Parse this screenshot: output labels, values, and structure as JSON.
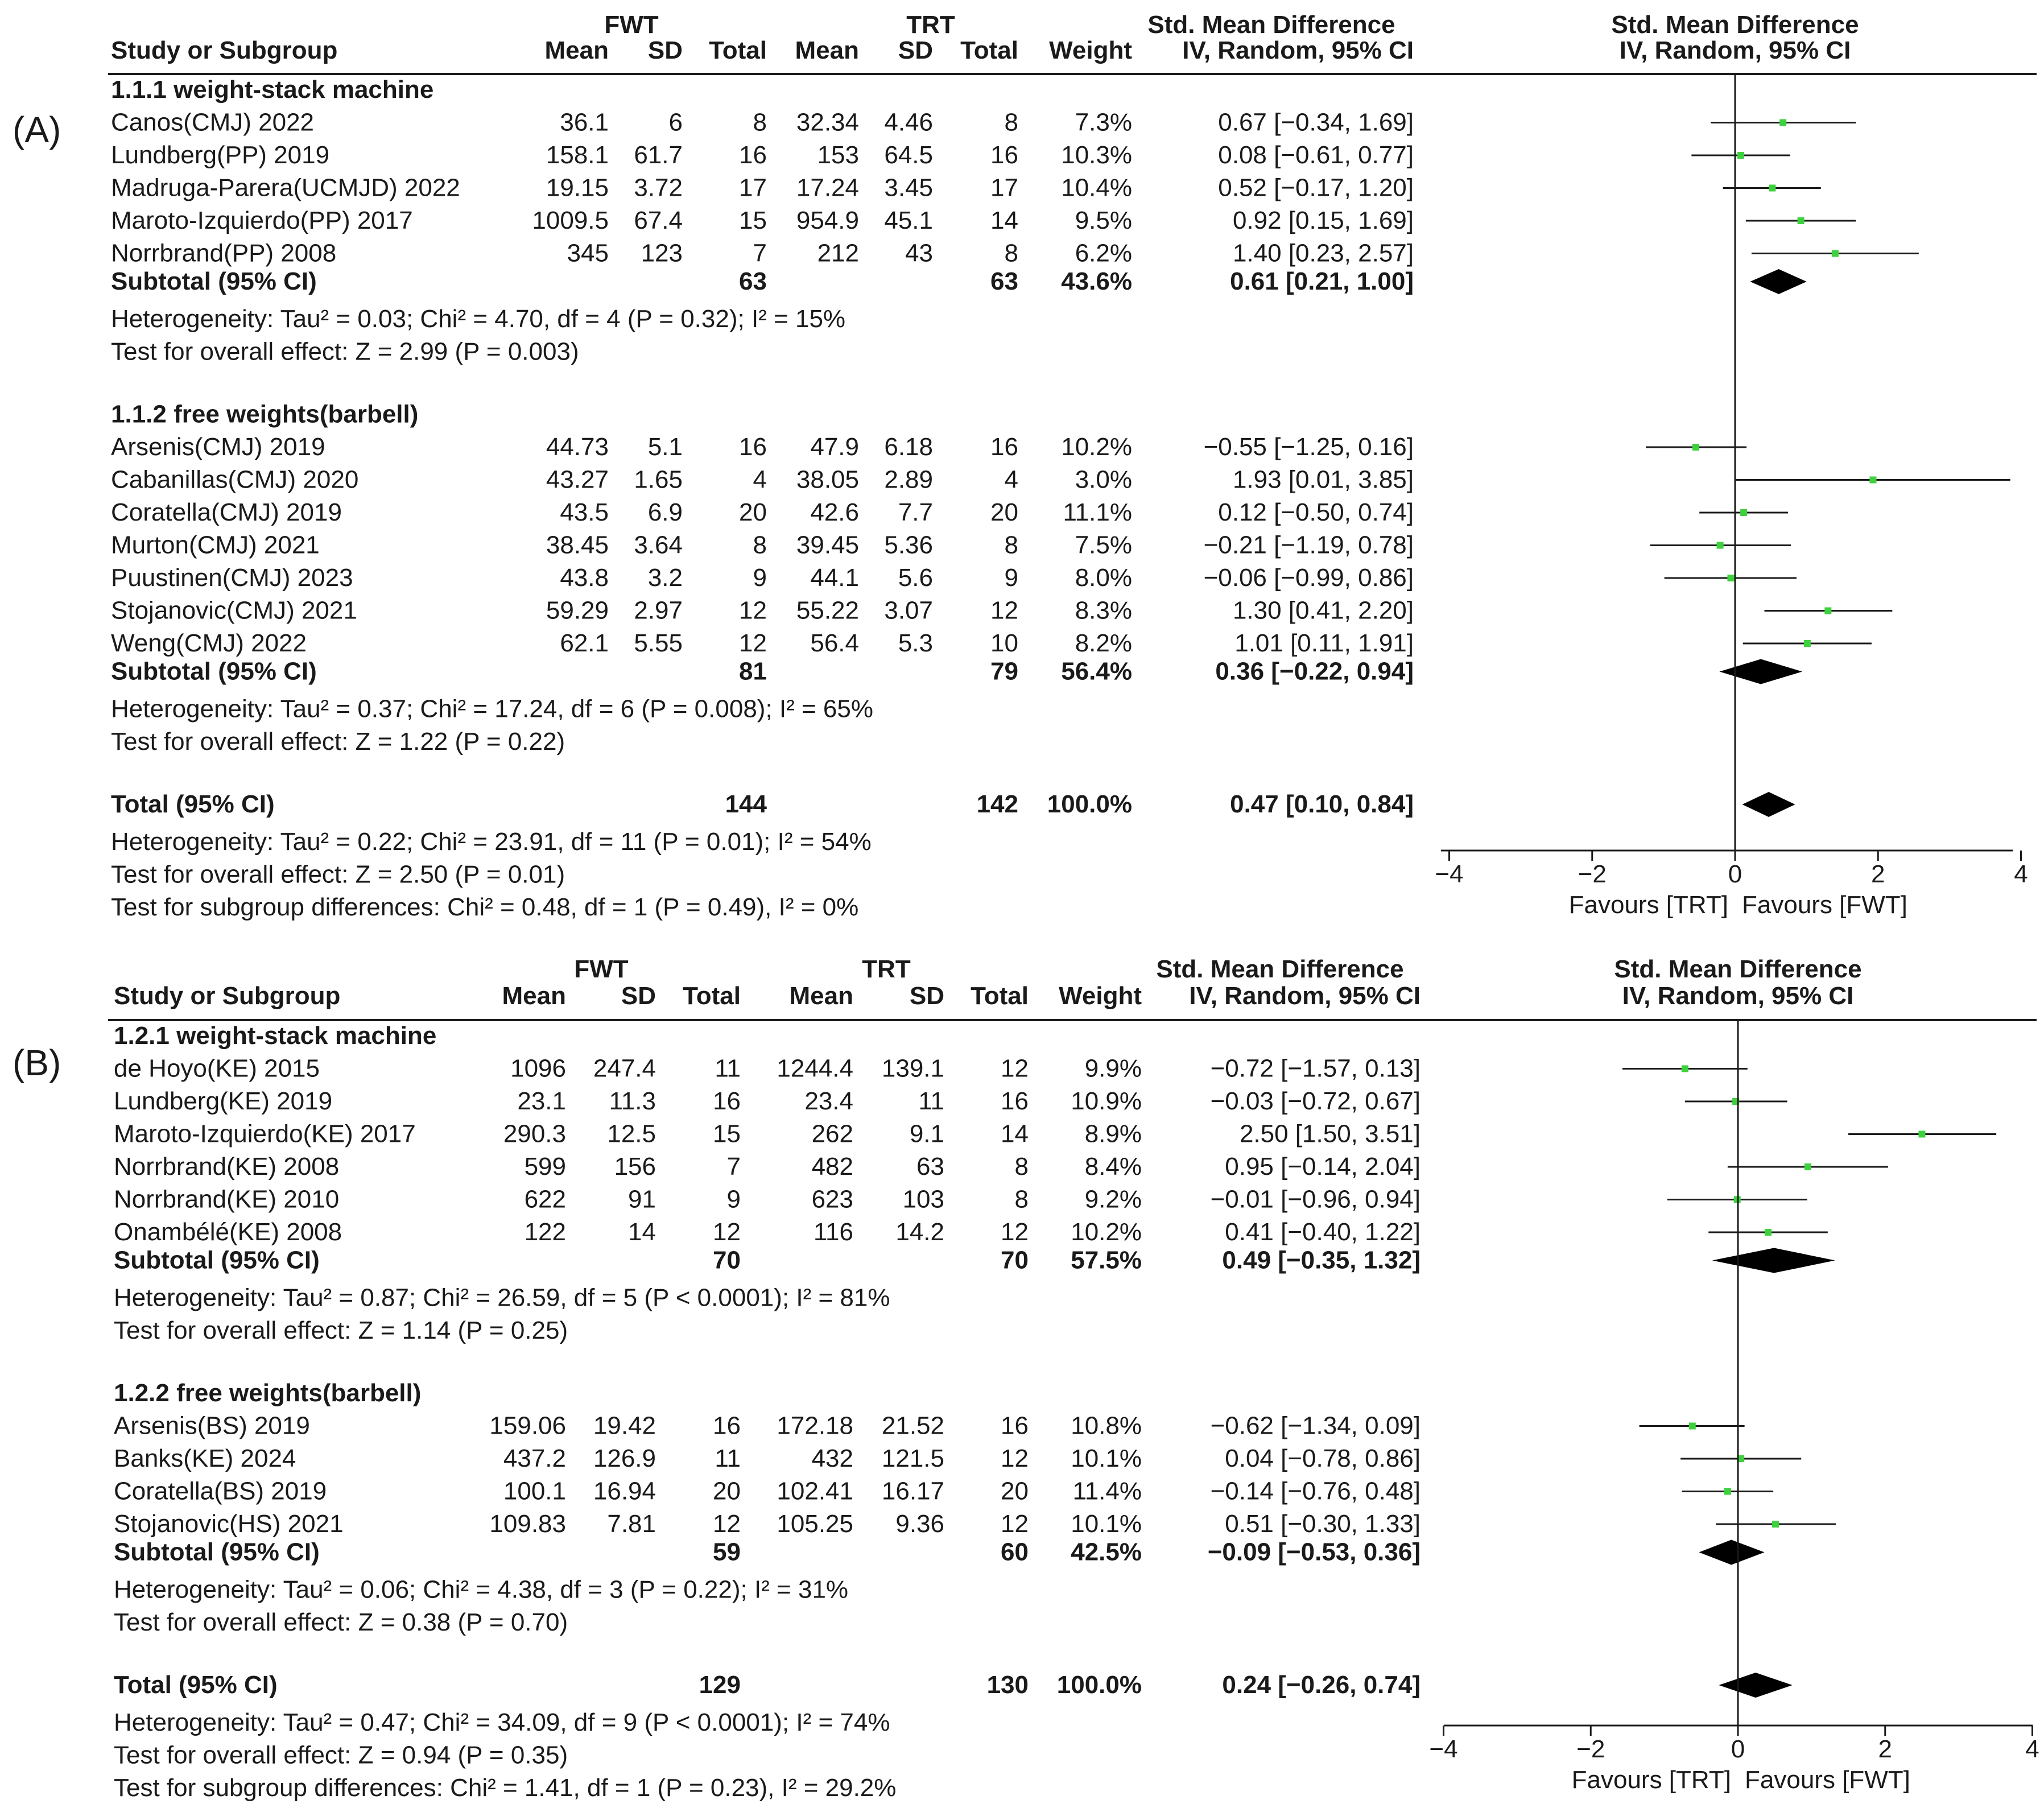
{
  "chart_data": [
    {
      "type": "forest",
      "panel_label": "(A)",
      "group_headers": [
        "FWT",
        "TRT"
      ],
      "columns": [
        "Study or Subgroup",
        "Mean",
        "SD",
        "Total",
        "Mean",
        "SD",
        "Total",
        "Weight",
        "IV, Random, 95% CI"
      ],
      "effect_header": "Std. Mean Difference",
      "plot_header": [
        "Std. Mean Difference",
        "IV, Random, 95% CI"
      ],
      "subgroups": [
        {
          "title": "1.1.1 weight-stack machine",
          "studies": [
            {
              "name": "Canos(CMJ) 2022",
              "fwt_mean": "36.1",
              "fwt_sd": "6",
              "fwt_n": "8",
              "trt_mean": "32.34",
              "trt_sd": "4.46",
              "trt_n": "8",
              "weight": "7.3%",
              "ci_text": "0.67 [-0.34, 1.69]",
              "est": 0.67,
              "lo": -0.34,
              "hi": 1.69
            },
            {
              "name": "Lundberg(PP) 2019",
              "fwt_mean": "158.1",
              "fwt_sd": "61.7",
              "fwt_n": "16",
              "trt_mean": "153",
              "trt_sd": "64.5",
              "trt_n": "16",
              "weight": "10.3%",
              "ci_text": "0.08 [-0.61, 0.77]",
              "est": 0.08,
              "lo": -0.61,
              "hi": 0.77
            },
            {
              "name": "Madruga-Parera(UCMJD) 2022",
              "fwt_mean": "19.15",
              "fwt_sd": "3.72",
              "fwt_n": "17",
              "trt_mean": "17.24",
              "trt_sd": "3.45",
              "trt_n": "17",
              "weight": "10.4%",
              "ci_text": "0.52 [-0.17, 1.20]",
              "est": 0.52,
              "lo": -0.17,
              "hi": 1.2
            },
            {
              "name": "Maroto-Izquierdo(PP) 2017",
              "fwt_mean": "1009.5",
              "fwt_sd": "67.4",
              "fwt_n": "15",
              "trt_mean": "954.9",
              "trt_sd": "45.1",
              "trt_n": "14",
              "weight": "9.5%",
              "ci_text": "0.92 [0.15, 1.69]",
              "est": 0.92,
              "lo": 0.15,
              "hi": 1.69
            },
            {
              "name": "Norrbrand(PP) 2008",
              "fwt_mean": "345",
              "fwt_sd": "123",
              "fwt_n": "7",
              "trt_mean": "212",
              "trt_sd": "43",
              "trt_n": "8",
              "weight": "6.2%",
              "ci_text": "1.40 [0.23, 2.57]",
              "est": 1.4,
              "lo": 0.23,
              "hi": 2.57
            }
          ],
          "subtotal": {
            "label": "Subtotal (95% CI)",
            "fwt_n": "63",
            "trt_n": "63",
            "weight": "43.6%",
            "ci_text": "0.61 [0.21, 1.00]",
            "est": 0.61,
            "lo": 0.21,
            "hi": 1.0
          },
          "heterogeneity": "Heterogeneity: Tau² = 0.03; Chi² = 4.70, df = 4 (P = 0.32); I² = 15%",
          "overall": "Test for overall effect: Z = 2.99 (P = 0.003)"
        },
        {
          "title": "1.1.2 free weights(barbell)",
          "studies": [
            {
              "name": "Arsenis(CMJ) 2019",
              "fwt_mean": "44.73",
              "fwt_sd": "5.1",
              "fwt_n": "16",
              "trt_mean": "47.9",
              "trt_sd": "6.18",
              "trt_n": "16",
              "weight": "10.2%",
              "ci_text": "-0.55 [-1.25, 0.16]",
              "est": -0.55,
              "lo": -1.25,
              "hi": 0.16
            },
            {
              "name": "Cabanillas(CMJ) 2020",
              "fwt_mean": "43.27",
              "fwt_sd": "1.65",
              "fwt_n": "4",
              "trt_mean": "38.05",
              "trt_sd": "2.89",
              "trt_n": "4",
              "weight": "3.0%",
              "ci_text": "1.93 [0.01, 3.85]",
              "est": 1.93,
              "lo": 0.01,
              "hi": 3.85
            },
            {
              "name": "Coratella(CMJ) 2019",
              "fwt_mean": "43.5",
              "fwt_sd": "6.9",
              "fwt_n": "20",
              "trt_mean": "42.6",
              "trt_sd": "7.7",
              "trt_n": "20",
              "weight": "11.1%",
              "ci_text": "0.12 [-0.50, 0.74]",
              "est": 0.12,
              "lo": -0.5,
              "hi": 0.74
            },
            {
              "name": "Murton(CMJ) 2021",
              "fwt_mean": "38.45",
              "fwt_sd": "3.64",
              "fwt_n": "8",
              "trt_mean": "39.45",
              "trt_sd": "5.36",
              "trt_n": "8",
              "weight": "7.5%",
              "ci_text": "-0.21 [-1.19, 0.78]",
              "est": -0.21,
              "lo": -1.19,
              "hi": 0.78
            },
            {
              "name": "Puustinen(CMJ) 2023",
              "fwt_mean": "43.8",
              "fwt_sd": "3.2",
              "fwt_n": "9",
              "trt_mean": "44.1",
              "trt_sd": "5.6",
              "trt_n": "9",
              "weight": "8.0%",
              "ci_text": "-0.06 [-0.99, 0.86]",
              "est": -0.06,
              "lo": -0.99,
              "hi": 0.86
            },
            {
              "name": "Stojanovic(CMJ) 2021",
              "fwt_mean": "59.29",
              "fwt_sd": "2.97",
              "fwt_n": "12",
              "trt_mean": "55.22",
              "trt_sd": "3.07",
              "trt_n": "12",
              "weight": "8.3%",
              "ci_text": "1.30 [0.41, 2.20]",
              "est": 1.3,
              "lo": 0.41,
              "hi": 2.2
            },
            {
              "name": "Weng(CMJ) 2022",
              "fwt_mean": "62.1",
              "fwt_sd": "5.55",
              "fwt_n": "12",
              "trt_mean": "56.4",
              "trt_sd": "5.3",
              "trt_n": "10",
              "weight": "8.2%",
              "ci_text": "1.01 [0.11, 1.91]",
              "est": 1.01,
              "lo": 0.11,
              "hi": 1.91
            }
          ],
          "subtotal": {
            "label": "Subtotal (95% CI)",
            "fwt_n": "81",
            "trt_n": "79",
            "weight": "56.4%",
            "ci_text": "0.36 [-0.22, 0.94]",
            "est": 0.36,
            "lo": -0.22,
            "hi": 0.94
          },
          "heterogeneity": "Heterogeneity: Tau² = 0.37; Chi² = 17.24, df = 6 (P = 0.008); I² = 65%",
          "overall": "Test for overall effect: Z = 1.22 (P = 0.22)"
        }
      ],
      "total": {
        "label": "Total (95% CI)",
        "fwt_n": "144",
        "trt_n": "142",
        "weight": "100.0%",
        "ci_text": "0.47 [0.10, 0.84]",
        "est": 0.47,
        "lo": 0.1,
        "hi": 0.84
      },
      "footer": [
        "Heterogeneity: Tau² = 0.22; Chi² = 23.91, df = 11 (P = 0.01); I² = 54%",
        "Test for overall effect: Z = 2.50 (P = 0.01)",
        "Test for subgroup differences: Chi² = 0.48, df = 1 (P = 0.49), I² = 0%"
      ],
      "xlim": [
        -4,
        4
      ],
      "ticks": [
        -4,
        -2,
        0,
        2,
        4
      ],
      "tick_labels": [
        "-4",
        "-2",
        "0",
        "2",
        "4"
      ],
      "favours_left": "Favours [TRT]",
      "favours_right": "Favours [FWT]"
    },
    {
      "type": "forest",
      "panel_label": "(B)",
      "group_headers": [
        "FWT",
        "TRT"
      ],
      "columns": [
        "Study or Subgroup",
        "Mean",
        "SD",
        "Total",
        "Mean",
        "SD",
        "Total",
        "Weight",
        "IV, Random, 95% CI"
      ],
      "effect_header": "Std. Mean Difference",
      "plot_header": [
        "Std. Mean Difference",
        "IV, Random, 95% CI"
      ],
      "subgroups": [
        {
          "title": "1.2.1 weight-stack machine",
          "studies": [
            {
              "name": "de Hoyo(KE) 2015",
              "fwt_mean": "1096",
              "fwt_sd": "247.4",
              "fwt_n": "11",
              "trt_mean": "1244.4",
              "trt_sd": "139.1",
              "trt_n": "12",
              "weight": "9.9%",
              "ci_text": "-0.72 [-1.57, 0.13]",
              "est": -0.72,
              "lo": -1.57,
              "hi": 0.13
            },
            {
              "name": "Lundberg(KE) 2019",
              "fwt_mean": "23.1",
              "fwt_sd": "11.3",
              "fwt_n": "16",
              "trt_mean": "23.4",
              "trt_sd": "11",
              "trt_n": "16",
              "weight": "10.9%",
              "ci_text": "-0.03 [-0.72, 0.67]",
              "est": -0.03,
              "lo": -0.72,
              "hi": 0.67
            },
            {
              "name": "Maroto-Izquierdo(KE) 2017",
              "fwt_mean": "290.3",
              "fwt_sd": "12.5",
              "fwt_n": "15",
              "trt_mean": "262",
              "trt_sd": "9.1",
              "trt_n": "14",
              "weight": "8.9%",
              "ci_text": "2.50 [1.50, 3.51]",
              "est": 2.5,
              "lo": 1.5,
              "hi": 3.51
            },
            {
              "name": "Norrbrand(KE) 2008",
              "fwt_mean": "599",
              "fwt_sd": "156",
              "fwt_n": "7",
              "trt_mean": "482",
              "trt_sd": "63",
              "trt_n": "8",
              "weight": "8.4%",
              "ci_text": "0.95 [-0.14, 2.04]",
              "est": 0.95,
              "lo": -0.14,
              "hi": 2.04
            },
            {
              "name": "Norrbrand(KE) 2010",
              "fwt_mean": "622",
              "fwt_sd": "91",
              "fwt_n": "9",
              "trt_mean": "623",
              "trt_sd": "103",
              "trt_n": "8",
              "weight": "9.2%",
              "ci_text": "-0.01 [-0.96, 0.94]",
              "est": -0.01,
              "lo": -0.96,
              "hi": 0.94
            },
            {
              "name": "Onambélé(KE) 2008",
              "fwt_mean": "122",
              "fwt_sd": "14",
              "fwt_n": "12",
              "trt_mean": "116",
              "trt_sd": "14.2",
              "trt_n": "12",
              "weight": "10.2%",
              "ci_text": "0.41 [-0.40, 1.22]",
              "est": 0.41,
              "lo": -0.4,
              "hi": 1.22
            }
          ],
          "subtotal": {
            "label": "Subtotal (95% CI)",
            "fwt_n": "70",
            "trt_n": "70",
            "weight": "57.5%",
            "ci_text": "0.49 [-0.35, 1.32]",
            "est": 0.49,
            "lo": -0.35,
            "hi": 1.32
          },
          "heterogeneity": "Heterogeneity: Tau² = 0.87; Chi² = 26.59, df = 5 (P < 0.0001); I² = 81%",
          "overall": "Test for overall effect: Z = 1.14 (P = 0.25)"
        },
        {
          "title": "1.2.2 free weights(barbell)",
          "studies": [
            {
              "name": "Arsenis(BS) 2019",
              "fwt_mean": "159.06",
              "fwt_sd": "19.42",
              "fwt_n": "16",
              "trt_mean": "172.18",
              "trt_sd": "21.52",
              "trt_n": "16",
              "weight": "10.8%",
              "ci_text": "-0.62 [-1.34, 0.09]",
              "est": -0.62,
              "lo": -1.34,
              "hi": 0.09
            },
            {
              "name": "Banks(KE) 2024",
              "fwt_mean": "437.2",
              "fwt_sd": "126.9",
              "fwt_n": "11",
              "trt_mean": "432",
              "trt_sd": "121.5",
              "trt_n": "12",
              "weight": "10.1%",
              "ci_text": "0.04 [-0.78, 0.86]",
              "est": 0.04,
              "lo": -0.78,
              "hi": 0.86
            },
            {
              "name": "Coratella(BS) 2019",
              "fwt_mean": "100.1",
              "fwt_sd": "16.94",
              "fwt_n": "20",
              "trt_mean": "102.41",
              "trt_sd": "16.17",
              "trt_n": "20",
              "weight": "11.4%",
              "ci_text": "-0.14 [-0.76, 0.48]",
              "est": -0.14,
              "lo": -0.76,
              "hi": 0.48
            },
            {
              "name": "Stojanovic(HS) 2021",
              "fwt_mean": "109.83",
              "fwt_sd": "7.81",
              "fwt_n": "12",
              "trt_mean": "105.25",
              "trt_sd": "9.36",
              "trt_n": "12",
              "weight": "10.1%",
              "ci_text": "0.51 [-0.30, 1.33]",
              "est": 0.51,
              "lo": -0.3,
              "hi": 1.33
            }
          ],
          "subtotal": {
            "label": "Subtotal (95% CI)",
            "fwt_n": "59",
            "trt_n": "60",
            "weight": "42.5%",
            "ci_text": "-0.09 [-0.53, 0.36]",
            "est": -0.09,
            "lo": -0.53,
            "hi": 0.36
          },
          "heterogeneity": "Heterogeneity: Tau² = 0.06; Chi² = 4.38, df = 3 (P = 0.22); I² = 31%",
          "overall": "Test for overall effect: Z = 0.38 (P = 0.70)"
        }
      ],
      "total": {
        "label": "Total (95% CI)",
        "fwt_n": "129",
        "trt_n": "130",
        "weight": "100.0%",
        "ci_text": "0.24 [-0.26, 0.74]",
        "est": 0.24,
        "lo": -0.26,
        "hi": 0.74
      },
      "footer": [
        "Heterogeneity: Tau² = 0.47; Chi² = 34.09, df = 9 (P < 0.0001); I² = 74%",
        "Test for overall effect: Z = 0.94 (P = 0.35)",
        "Test for subgroup differences: Chi² = 1.41, df = 1 (P = 0.23), I² = 29.2%"
      ],
      "xlim": [
        -4,
        4
      ],
      "ticks": [
        -4,
        -2,
        0,
        2,
        4
      ],
      "tick_labels": [
        "-4",
        "-2",
        "0",
        "2",
        "4"
      ],
      "favours_left": "Favours [TRT]",
      "favours_right": "Favours [FWT]"
    }
  ]
}
